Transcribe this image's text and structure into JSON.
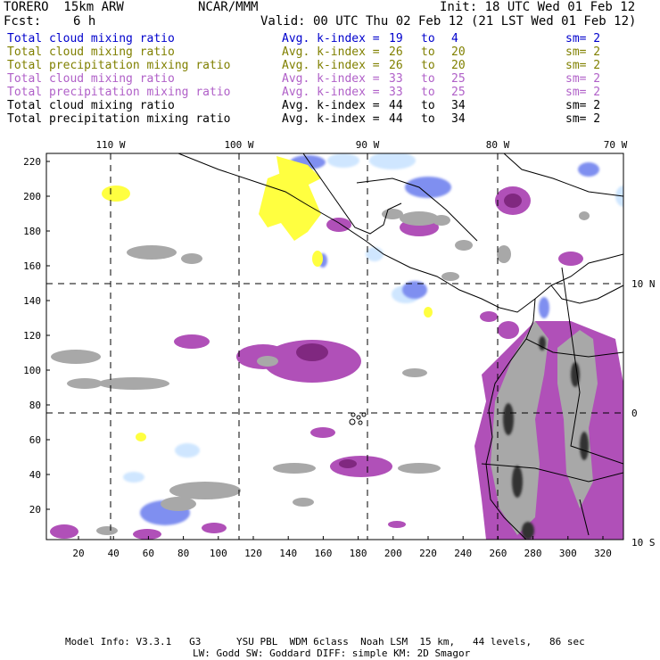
{
  "header": {
    "model": "TORERO  15km ARW",
    "org": "NCAR/MMM",
    "init": "Init: 18 UTC Wed 01 Feb 12",
    "fcst_label": "Fcst:",
    "fcst_value": "6 h",
    "valid": "Valid: 00 UTC Thu 02 Feb 12 (21 LST Wed 01 Feb 12)"
  },
  "legend_rows": [
    {
      "field": "Total cloud mixing ratio",
      "avg": "Avg. k-index = ",
      "k1": "19",
      "to": "to",
      "k2": "4",
      "sm": "sm= 2",
      "color": "#0000cc"
    },
    {
      "field": "Total cloud mixing ratio",
      "avg": "Avg. k-index = ",
      "k1": "26",
      "to": "to",
      "k2": "20",
      "sm": "sm= 2",
      "color": "#808000"
    },
    {
      "field": "Total precipitation mixing ratio",
      "avg": "Avg. k-index = ",
      "k1": "26",
      "to": "to",
      "k2": "20",
      "sm": "sm= 2",
      "color": "#808000"
    },
    {
      "field": "Total cloud mixing ratio",
      "avg": "Avg. k-index = ",
      "k1": "33",
      "to": "to",
      "k2": "25",
      "sm": "sm= 2",
      "color": "#b060c8"
    },
    {
      "field": "Total precipitation mixing ratio",
      "avg": "Avg. k-index = ",
      "k1": "33",
      "to": "to",
      "k2": "25",
      "sm": "sm= 2",
      "color": "#b060c8"
    },
    {
      "field": "Total cloud mixing ratio",
      "avg": "Avg. k-index = ",
      "k1": "44",
      "to": "to",
      "k2": "34",
      "sm": "sm= 2",
      "color": "#000000"
    },
    {
      "field": "Total precipitation mixing ratio",
      "avg": "Avg. k-index = ",
      "k1": "44",
      "to": "to",
      "k2": "34",
      "sm": "sm= 2",
      "color": "#000000"
    }
  ],
  "map": {
    "top_lon_labels": [
      "110 W",
      "100 W",
      "90 W",
      "80 W",
      "70 W"
    ],
    "right_lat_labels": [
      "10 N",
      "0",
      "10 S"
    ],
    "y_ticks": [
      "220",
      "200",
      "180",
      "160",
      "140",
      "120",
      "100",
      "80",
      "60",
      "40",
      "20"
    ],
    "x_ticks": [
      "20",
      "40",
      "60",
      "80",
      "100",
      "120",
      "140",
      "160",
      "180",
      "200",
      "220",
      "240",
      "260",
      "280",
      "300",
      "320"
    ],
    "colors": {
      "blue": "#5b6fe0",
      "light_blue": "#cfe6ff",
      "yellow": "#ffff40",
      "purple": "#b050b8",
      "dark_purple": "#802880",
      "gray": "#a8a8a8",
      "dark_gray": "#303030"
    }
  },
  "footer": {
    "line1": "Model Info: V3.3.1   G3      YSU PBL  WDM 6class  Noah LSM  15 km,   44 levels,   86 sec",
    "line2": "LW: Godd SW: Goddard DIFF: simple KM: 2D Smagor"
  }
}
